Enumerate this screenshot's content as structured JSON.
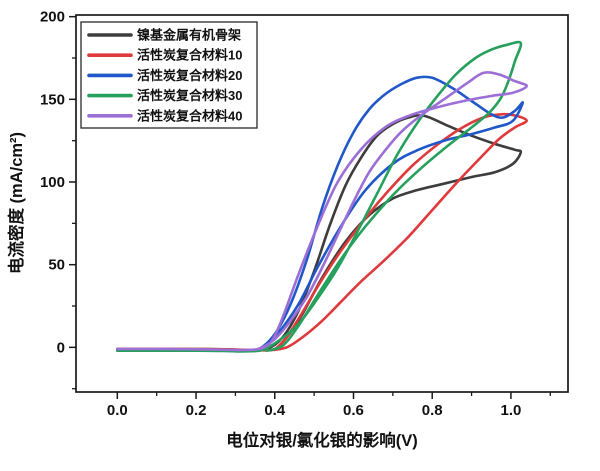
{
  "figure": {
    "background": "#ffffff",
    "frame_color": "#1a1a1a",
    "text_color": "#111111"
  },
  "chart_data": {
    "type": "line",
    "title": "",
    "xlabel": "电位对银/氯化银的影响(V)",
    "ylabel": "电流密度 (mA/cm²)",
    "xlim": [
      -0.105,
      1.145
    ],
    "ylim": [
      -27,
      201
    ],
    "x_major_ticks": [
      0.0,
      0.2,
      0.4,
      0.6,
      0.8,
      1.0
    ],
    "x_tick_labels": [
      "0.0",
      "0.2",
      "0.4",
      "0.6",
      "0.8",
      "1.0"
    ],
    "x_minor_ticks": [
      0.1,
      0.3,
      0.5,
      0.7,
      0.9,
      1.1
    ],
    "y_major_ticks": [
      0,
      50,
      100,
      150,
      200
    ],
    "y_tick_labels": [
      "0",
      "50",
      "100",
      "150",
      "200"
    ],
    "y_minor_ticks": [
      -25,
      25,
      75,
      125,
      175
    ],
    "grid": false,
    "legend_position": "top-left",
    "line_width": 2.6,
    "series": [
      {
        "name": "镍基金属有机骨架",
        "color": "#3d3d3d",
        "points": [
          [
            0.0,
            -1
          ],
          [
            0.1,
            -1
          ],
          [
            0.2,
            -1
          ],
          [
            0.28,
            -1.2
          ],
          [
            0.34,
            -1.8
          ],
          [
            0.38,
            -1
          ],
          [
            0.42,
            6
          ],
          [
            0.46,
            22
          ],
          [
            0.5,
            46
          ],
          [
            0.54,
            74
          ],
          [
            0.58,
            98
          ],
          [
            0.62,
            115
          ],
          [
            0.66,
            128
          ],
          [
            0.7,
            135
          ],
          [
            0.74,
            139
          ],
          [
            0.78,
            140
          ],
          [
            0.84,
            134
          ],
          [
            0.9,
            128
          ],
          [
            0.96,
            123
          ],
          [
            1.01,
            119.5
          ],
          [
            1.025,
            118
          ],
          [
            1.005,
            111
          ],
          [
            0.96,
            106
          ],
          [
            0.9,
            103
          ],
          [
            0.83,
            99
          ],
          [
            0.76,
            95
          ],
          [
            0.7,
            90
          ],
          [
            0.64,
            80
          ],
          [
            0.58,
            64
          ],
          [
            0.52,
            42
          ],
          [
            0.47,
            20
          ],
          [
            0.43,
            6
          ],
          [
            0.4,
            -1
          ],
          [
            0.37,
            -1.8
          ]
        ]
      },
      {
        "name": "活性炭复合材料10",
        "color": "#e0393b",
        "points": [
          [
            0.0,
            -1
          ],
          [
            0.1,
            -1
          ],
          [
            0.2,
            -1
          ],
          [
            0.28,
            -1.2
          ],
          [
            0.34,
            -1.6
          ],
          [
            0.39,
            -1.6
          ],
          [
            0.43,
            0
          ],
          [
            0.47,
            6
          ],
          [
            0.52,
            16
          ],
          [
            0.57,
            28
          ],
          [
            0.62,
            40
          ],
          [
            0.68,
            53
          ],
          [
            0.74,
            67
          ],
          [
            0.8,
            83
          ],
          [
            0.86,
            99
          ],
          [
            0.92,
            114
          ],
          [
            0.97,
            126
          ],
          [
            1.01,
            133
          ],
          [
            1.04,
            137
          ],
          [
            1.015,
            140
          ],
          [
            0.98,
            141
          ],
          [
            0.93,
            139
          ],
          [
            0.87,
            132
          ],
          [
            0.81,
            122
          ],
          [
            0.75,
            110
          ],
          [
            0.69,
            95
          ],
          [
            0.63,
            78
          ],
          [
            0.57,
            59
          ],
          [
            0.52,
            41
          ],
          [
            0.47,
            21
          ],
          [
            0.43,
            6
          ],
          [
            0.4,
            -1.6
          ]
        ]
      },
      {
        "name": "活性炭复合材料20",
        "color": "#2057c9",
        "points": [
          [
            0.0,
            -1.5
          ],
          [
            0.1,
            -1.5
          ],
          [
            0.2,
            -1.8
          ],
          [
            0.27,
            -2
          ],
          [
            0.32,
            -2.4
          ],
          [
            0.36,
            -1
          ],
          [
            0.4,
            8
          ],
          [
            0.44,
            26
          ],
          [
            0.48,
            52
          ],
          [
            0.52,
            84
          ],
          [
            0.56,
            110
          ],
          [
            0.6,
            130
          ],
          [
            0.64,
            144
          ],
          [
            0.68,
            153
          ],
          [
            0.72,
            159
          ],
          [
            0.76,
            163
          ],
          [
            0.8,
            163
          ],
          [
            0.85,
            157
          ],
          [
            0.9,
            149
          ],
          [
            0.95,
            141
          ],
          [
            0.98,
            139
          ],
          [
            1.01,
            143
          ],
          [
            1.03,
            148
          ],
          [
            1.005,
            137
          ],
          [
            0.96,
            133
          ],
          [
            0.9,
            129
          ],
          [
            0.83,
            125
          ],
          [
            0.76,
            119
          ],
          [
            0.7,
            111
          ],
          [
            0.63,
            95
          ],
          [
            0.57,
            74
          ],
          [
            0.51,
            49
          ],
          [
            0.46,
            26
          ],
          [
            0.41,
            9
          ],
          [
            0.37,
            -0.5
          ],
          [
            0.34,
            -2
          ]
        ]
      },
      {
        "name": "活性炭复合材料30",
        "color": "#27a05d",
        "points": [
          [
            0.0,
            -2
          ],
          [
            0.1,
            -2
          ],
          [
            0.2,
            -2
          ],
          [
            0.27,
            -2.2
          ],
          [
            0.33,
            -2.4
          ],
          [
            0.37,
            -1.5
          ],
          [
            0.41,
            4
          ],
          [
            0.46,
            14
          ],
          [
            0.51,
            30
          ],
          [
            0.56,
            48
          ],
          [
            0.61,
            70
          ],
          [
            0.66,
            93
          ],
          [
            0.71,
            116
          ],
          [
            0.76,
            135
          ],
          [
            0.81,
            151
          ],
          [
            0.86,
            165
          ],
          [
            0.91,
            175
          ],
          [
            0.95,
            180
          ],
          [
            0.99,
            183
          ],
          [
            1.025,
            184
          ],
          [
            1.01,
            173
          ],
          [
            0.995,
            162
          ],
          [
            0.975,
            151
          ],
          [
            0.945,
            142
          ],
          [
            0.9,
            133
          ],
          [
            0.84,
            122
          ],
          [
            0.77,
            108
          ],
          [
            0.7,
            92
          ],
          [
            0.63,
            73
          ],
          [
            0.57,
            54
          ],
          [
            0.51,
            32
          ],
          [
            0.46,
            13
          ],
          [
            0.42,
            1
          ],
          [
            0.38,
            -2
          ]
        ]
      },
      {
        "name": "活性炭复合材料40",
        "color": "#9c6fd6",
        "points": [
          [
            0.0,
            -1
          ],
          [
            0.1,
            -1
          ],
          [
            0.2,
            -1.2
          ],
          [
            0.27,
            -1.4
          ],
          [
            0.32,
            -1.6
          ],
          [
            0.36,
            -0.8
          ],
          [
            0.4,
            5
          ],
          [
            0.44,
            16
          ],
          [
            0.48,
            30
          ],
          [
            0.52,
            48
          ],
          [
            0.56,
            68
          ],
          [
            0.6,
            88
          ],
          [
            0.64,
            106
          ],
          [
            0.68,
            119
          ],
          [
            0.72,
            130
          ],
          [
            0.77,
            140
          ],
          [
            0.83,
            150
          ],
          [
            0.89,
            160
          ],
          [
            0.93,
            166
          ],
          [
            0.97,
            165
          ],
          [
            1.01,
            161
          ],
          [
            1.04,
            158
          ],
          [
            1.005,
            154
          ],
          [
            0.95,
            152
          ],
          [
            0.88,
            149
          ],
          [
            0.81,
            145
          ],
          [
            0.74,
            140
          ],
          [
            0.68,
            133
          ],
          [
            0.62,
            120
          ],
          [
            0.56,
            100
          ],
          [
            0.51,
            74
          ],
          [
            0.46,
            44
          ],
          [
            0.42,
            18
          ],
          [
            0.39,
            3
          ],
          [
            0.36,
            -1.2
          ]
        ]
      }
    ]
  }
}
